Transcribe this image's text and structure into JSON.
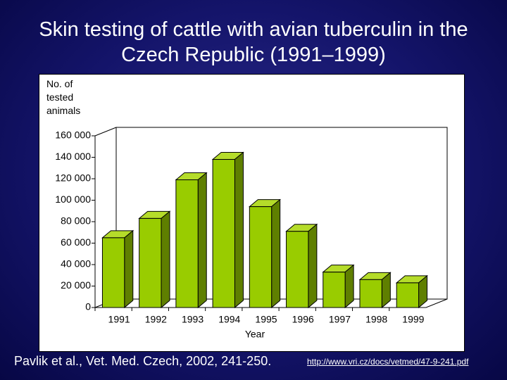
{
  "chart_data": {
    "type": "bar3d",
    "title": "Skin testing of cattle with avian tuberculin in the Czech Republic (1991–1999)",
    "y_label": "No. of tested animals",
    "x_label": "Year",
    "categories": [
      "1991",
      "1992",
      "1993",
      "1994",
      "1995",
      "1996",
      "1997",
      "1998",
      "1999"
    ],
    "values": [
      65000,
      83000,
      119000,
      138000,
      94000,
      71000,
      33000,
      26000,
      23000
    ],
    "color": "#99cc00",
    "ylim": [
      0,
      160000
    ],
    "yticks": [
      0,
      {
        "value": 20000,
        "label": "20 000"
      },
      {
        "value": 40000,
        "label": "40 000"
      },
      {
        "value": 60000,
        "label": "60 000"
      },
      {
        "value": 80000,
        "label": "80 000"
      },
      {
        "value": 100000,
        "label": "100 000"
      },
      {
        "value": 120000,
        "label": "120 000"
      },
      {
        "value": 140000,
        "label": "140 000"
      },
      {
        "value": 160000,
        "label": "160 000"
      }
    ],
    "grid": false
  },
  "footer": {
    "citation": "Pavlik et al., Vet. Med. Czech, 2002, 241-250.",
    "url": "http://www.vri.cz/docs/vetmed/47-9-241.pdf"
  }
}
